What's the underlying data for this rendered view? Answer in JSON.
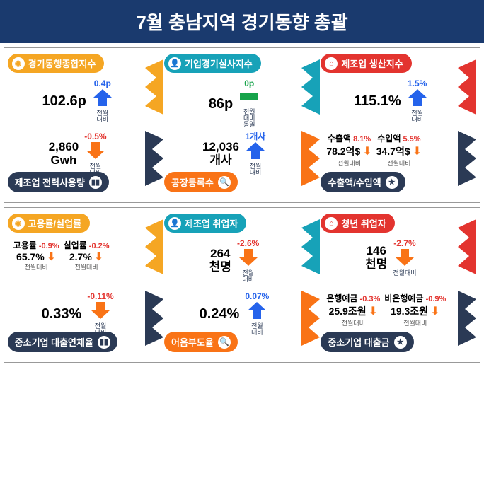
{
  "title": "7월 충남지역 경기동향 총괄",
  "colors": {
    "header_bg": "#1a3a6e",
    "yellow": "#f5a623",
    "teal": "#17a2b8",
    "red": "#e3342f",
    "navy": "#2b3a55",
    "orange": "#f97316",
    "blue": "#2563eb",
    "green": "#16a34a"
  },
  "sections": [
    {
      "rows": [
        [
          {
            "pos": "top",
            "tag_color": "c-yellow",
            "tag": "경기동행종합지수",
            "icon": "◉",
            "value": "102.6p",
            "delta": "0.4p",
            "delta_color": "blue",
            "arrow": "up",
            "arrow_color": "blue",
            "compare": "전월\n대비",
            "ribbon": "#f5a623"
          },
          {
            "pos": "top",
            "tag_color": "c-teal",
            "tag": "기업경기실사지수",
            "icon": "👤",
            "value": "86p",
            "delta": "0p",
            "delta_color": "green",
            "arrow": "flat",
            "arrow_color": "green",
            "compare": "전월\n대비\n동일",
            "ribbon": "#17a2b8"
          },
          {
            "pos": "top",
            "tag_color": "c-red",
            "tag": "제조업 생산지수",
            "icon": "⌂",
            "value": "115.1%",
            "delta": "1.5%",
            "delta_color": "blue",
            "arrow": "up",
            "arrow_color": "blue",
            "compare": "전월\n대비",
            "ribbon": "#e3342f"
          }
        ],
        [
          {
            "pos": "bottom",
            "tag_color": "c-navy",
            "tag": "제조업 전력사용량",
            "icon": "▮▮",
            "value": "2,860\nGwh",
            "delta": "-0.5%",
            "delta_color": "red",
            "arrow": "down",
            "arrow_color": "orange",
            "compare": "전월\n대비",
            "ribbon": "#2b3a55"
          },
          {
            "pos": "bottom",
            "tag_color": "c-orange",
            "tag": "공장등록수",
            "icon": "🔍",
            "value": "12,036\n개사",
            "delta": "1개사",
            "delta_color": "blue",
            "arrow": "up",
            "arrow_color": "blue",
            "compare": "전월\n대비",
            "ribbon": "#f97316"
          },
          {
            "pos": "bottom",
            "tag_color": "c-navy",
            "tag": "수출액/수입액",
            "icon": "★",
            "dual": [
              {
                "lbl": "수출액",
                "d": "8.1%",
                "dc": "red",
                "v": "78.2억$",
                "arrow": "down",
                "ac": "orange",
                "s": "전월대비"
              },
              {
                "lbl": "수입액",
                "d": "5.5%",
                "dc": "red",
                "v": "34.7억$",
                "arrow": "down",
                "ac": "orange",
                "s": "전월대비"
              }
            ],
            "ribbon": "#2b3a55"
          }
        ]
      ]
    },
    {
      "rows": [
        [
          {
            "pos": "top",
            "tag_color": "c-yellow",
            "tag": "고용률/실업률",
            "icon": "◉",
            "dual": [
              {
                "lbl": "고용률",
                "d": "-0.9%",
                "dc": "red",
                "v": "65.7%",
                "arrow": "down",
                "ac": "orange",
                "s": "전월대비"
              },
              {
                "lbl": "실업률",
                "d": "-0.2%",
                "dc": "red",
                "v": "2.7%",
                "arrow": "down",
                "ac": "orange",
                "s": "전월대비"
              }
            ],
            "ribbon": "#f5a623"
          },
          {
            "pos": "top",
            "tag_color": "c-teal",
            "tag": "제조업 취업자",
            "icon": "👤",
            "value": "264\n천명",
            "delta": "-2.6%",
            "delta_color": "red",
            "arrow": "down",
            "arrow_color": "orange",
            "compare": "전월\n대비",
            "ribbon": "#17a2b8"
          },
          {
            "pos": "top",
            "tag_color": "c-red",
            "tag": "청년 취업자",
            "icon": "⌂",
            "value": "146\n천명",
            "delta": "-2.7%",
            "delta_color": "red",
            "arrow": "down",
            "arrow_color": "orange",
            "compare": "전월대비",
            "ribbon": "#e3342f"
          }
        ],
        [
          {
            "pos": "bottom",
            "tag_color": "c-navy",
            "tag": "중소기업 대출연체율",
            "icon": "▮▮",
            "value": "0.33%",
            "delta": "-0.11%",
            "delta_color": "red",
            "arrow": "down",
            "arrow_color": "orange",
            "compare": "전월\n대비",
            "ribbon": "#2b3a55"
          },
          {
            "pos": "bottom",
            "tag_color": "c-orange",
            "tag": "어음부도율",
            "icon": "🔍",
            "value": "0.24%",
            "delta": "0.07%",
            "delta_color": "blue",
            "arrow": "up",
            "arrow_color": "blue",
            "compare": "전월\n대비",
            "ribbon": "#f97316"
          },
          {
            "pos": "bottom",
            "tag_color": "c-navy",
            "tag": "중소기업 대출금",
            "icon": "★",
            "dual": [
              {
                "lbl": "은행예금",
                "d": "-0.3%",
                "dc": "red",
                "v": "25.9조원",
                "arrow": "down",
                "ac": "orange",
                "s": "전월대비"
              },
              {
                "lbl": "비은행예금",
                "d": "-0.9%",
                "dc": "red",
                "v": "19.3조원",
                "arrow": "down",
                "ac": "orange",
                "s": "전월대비"
              }
            ],
            "ribbon": "#2b3a55"
          }
        ]
      ]
    }
  ]
}
